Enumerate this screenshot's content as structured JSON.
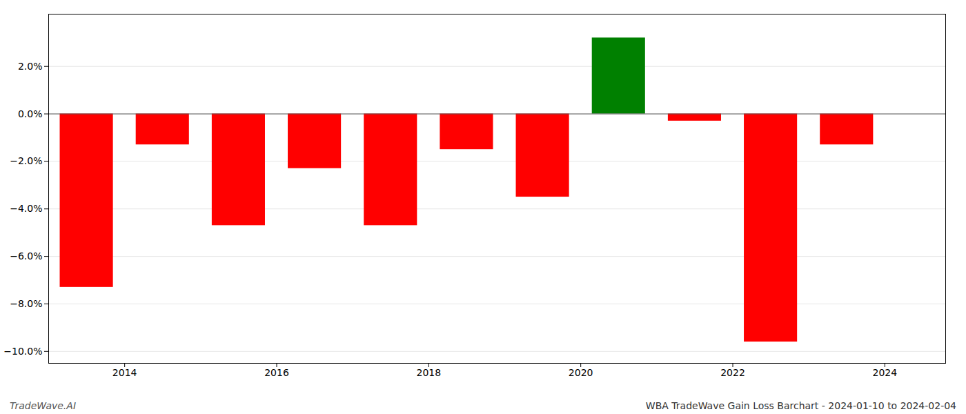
{
  "chart_data": {
    "type": "bar",
    "title": "WBA TradeWave Gain Loss Barchart - 2024-01-10 to 2024-02-04",
    "annotations": [
      "TradeWave.AI"
    ],
    "x": [
      2013.5,
      2014.5,
      2015.5,
      2016.5,
      2017.5,
      2018.5,
      2019.5,
      2020.5,
      2021.5,
      2022.5,
      2023.5
    ],
    "values": [
      -7.3,
      -1.3,
      -4.7,
      -2.3,
      -4.7,
      -1.5,
      -3.5,
      3.2,
      -0.3,
      -9.6,
      -1.3
    ],
    "colors": [
      "#FF0000",
      "#FF0000",
      "#FF0000",
      "#FF0000",
      "#FF0000",
      "#FF0000",
      "#FF0000",
      "#008000",
      "#FF0000",
      "#FF0000",
      "#FF0000"
    ],
    "xlim": [
      2013.0,
      2024.8
    ],
    "xticks": [
      2014,
      2016,
      2018,
      2020,
      2022,
      2024
    ],
    "ylim": [
      -10.5,
      4.2
    ],
    "yticks": [
      {
        "value": -10.0,
        "label": "−10.0%"
      },
      {
        "value": -8.0,
        "label": "−8.0%"
      },
      {
        "value": -6.0,
        "label": "−6.0%"
      },
      {
        "value": -4.0,
        "label": "−4.0%"
      },
      {
        "value": -2.0,
        "label": "−2.0%"
      },
      {
        "value": 0.0,
        "label": "0.0%"
      },
      {
        "value": 2.0,
        "label": "2.0%"
      }
    ],
    "grid": true
  }
}
